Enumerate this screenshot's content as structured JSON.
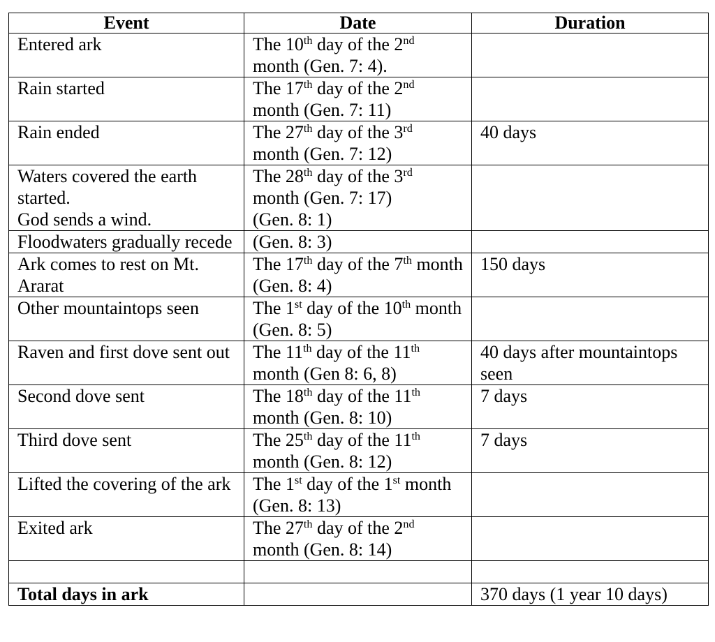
{
  "table": {
    "headers": [
      "Event",
      "Date",
      "Duration"
    ],
    "rows": [
      {
        "event": [
          "Entered ark"
        ],
        "date": [
          [
            "The 10",
            "th",
            " day of the 2",
            "nd",
            " month (Gen. 7: 4)."
          ]
        ],
        "duration": null
      },
      {
        "event": [
          "Rain started"
        ],
        "date": [
          [
            "The 17",
            "th",
            " day of the 2",
            "nd",
            " month (Gen. 7: 11)"
          ]
        ],
        "duration": null
      },
      {
        "event": [
          "Rain ended"
        ],
        "date": [
          [
            "The 27",
            "th",
            " day of the 3",
            "rd",
            " month (Gen. 7: 12)"
          ]
        ],
        "duration": "40 days"
      },
      {
        "event": [
          "Waters covered the earth started.",
          "God sends a wind."
        ],
        "date": [
          [
            "The 28",
            "th",
            " day of the 3",
            "rd",
            " month (Gen. 7: 17)"
          ],
          [
            "(Gen. 8: 1)"
          ]
        ],
        "duration": null
      },
      {
        "event": [
          "Floodwaters gradually recede"
        ],
        "date": [
          [
            "(Gen. 8: 3)"
          ]
        ],
        "duration": null
      },
      {
        "event": [
          "Ark comes to rest on Mt. Ararat"
        ],
        "date": [
          [
            "The 17",
            "th",
            " day of the 7",
            "th",
            " month (Gen. 8: 4)"
          ]
        ],
        "duration": "150 days"
      },
      {
        "event": [
          "Other mountaintops seen"
        ],
        "date": [
          [
            "The 1",
            "st",
            " day of the 10",
            "th",
            " month (Gen. 8: 5)"
          ]
        ],
        "duration": null
      },
      {
        "event": [
          "Raven and first dove sent out"
        ],
        "date": [
          [
            "The 11",
            "th",
            " day of the 11",
            "th",
            " month (Gen 8: 6, 8)"
          ]
        ],
        "duration": "40 days after mountaintops seen"
      },
      {
        "event": [
          "Second dove sent"
        ],
        "date": [
          [
            "The 18",
            "th",
            " day of the 11",
            "th",
            " month (Gen. 8: 10)"
          ]
        ],
        "duration": "7 days"
      },
      {
        "event": [
          "Third dove sent"
        ],
        "date": [
          [
            "The 25",
            "th",
            " day of the 11",
            "th",
            " month (Gen. 8: 12)"
          ]
        ],
        "duration": "7 days"
      },
      {
        "event": [
          "Lifted the covering of the ark"
        ],
        "date": [
          [
            "The 1",
            "st",
            " day of the 1",
            "st",
            " month (Gen. 8: 13)"
          ]
        ],
        "duration": null
      },
      {
        "event": [
          "Exited ark"
        ],
        "date": [
          [
            "The 27",
            "th",
            " day of the 2",
            "nd",
            " month (Gen. 8: 14)"
          ]
        ],
        "duration": null
      },
      {
        "event": null,
        "date": null,
        "duration": null
      },
      {
        "event": [
          "Total days in ark"
        ],
        "date": null,
        "duration": "370 days (1 year 10 days)"
      }
    ]
  }
}
